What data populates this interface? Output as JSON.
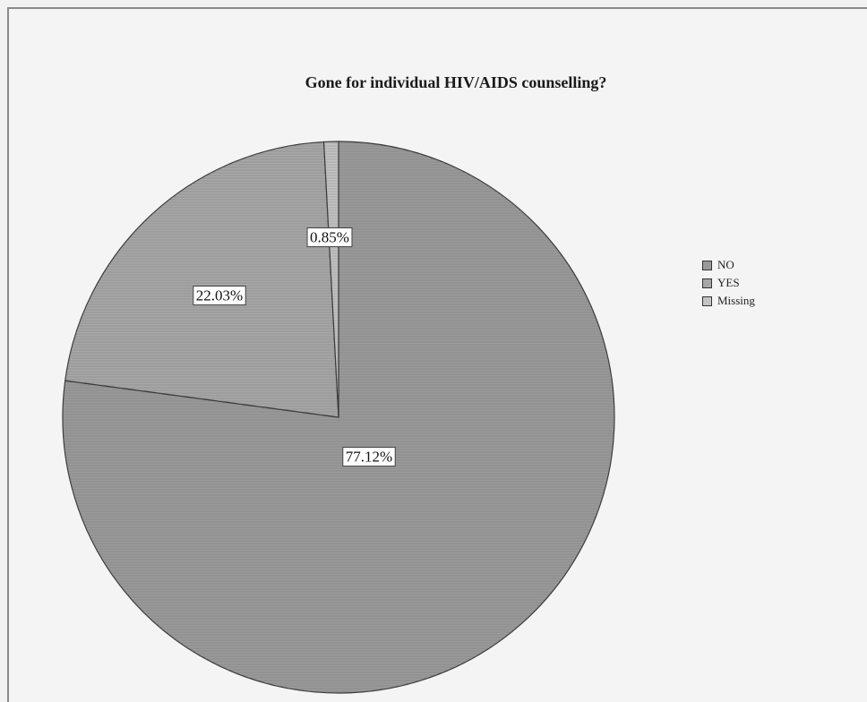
{
  "chart_data": {
    "type": "pie",
    "title": "Gone for individual HIV/AIDS counselling?",
    "categories": [
      "NO",
      "YES",
      "Missing"
    ],
    "values": [
      77.12,
      22.03,
      0.85
    ],
    "data_labels": [
      "77.12%",
      "22.03%",
      "0.85%"
    ],
    "colors": [
      "#9a9a9a",
      "#a7a7a7",
      "#c4c4c4"
    ],
    "legend_position": "right",
    "start_angle_deg": 0,
    "direction": "clockwise"
  }
}
